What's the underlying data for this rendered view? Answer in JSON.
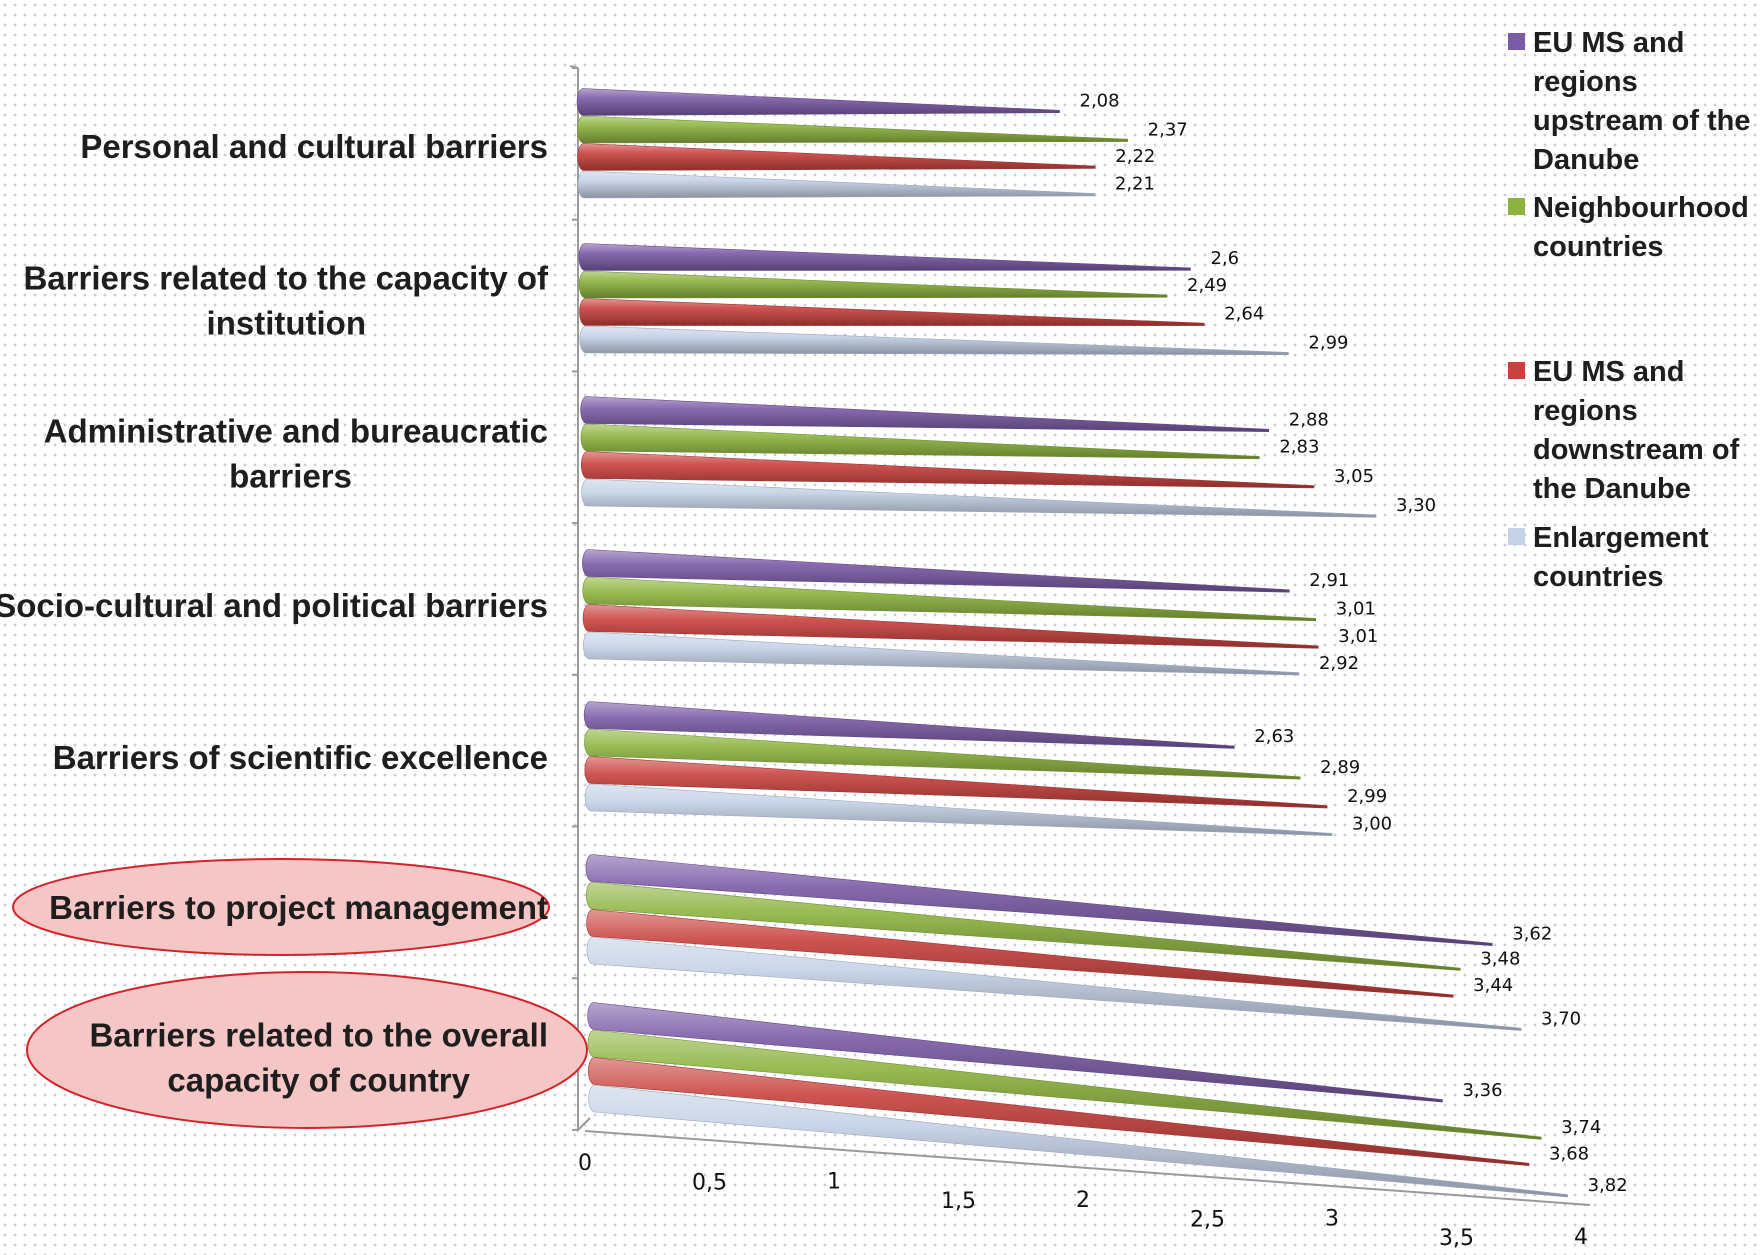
{
  "chart_data": {
    "type": "bar",
    "orientation": "horizontal",
    "categories": [
      "Personal and cultural barriers",
      "Barriers related to the capacity of institution",
      "Administrative and bureaucratic barriers",
      "Socio-cultural and political barriers",
      "Barriers of scientific excellence",
      "Barriers to project management",
      "Barriers related to the overall capacity of country"
    ],
    "highlighted_categories": [
      "Barriers to project management",
      "Barriers related to the overall capacity of country"
    ],
    "series": [
      {
        "name": "EU MS and regions upstream of the Danube",
        "color": "#7b5ba6",
        "values": [
          2.08,
          2.6,
          2.88,
          2.91,
          2.63,
          3.62,
          3.36
        ],
        "labels": [
          "2,08",
          "2,6",
          "2,88",
          "2,91",
          "2,63",
          "3,62",
          "3,36"
        ]
      },
      {
        "name": "Neighbourhood countries",
        "color": "#8db33f",
        "values": [
          2.37,
          2.49,
          2.83,
          3.01,
          2.89,
          3.48,
          3.74
        ],
        "labels": [
          "2,37",
          "2,49",
          "2,83",
          "3,01",
          "2,89",
          "3,48",
          "3,74"
        ]
      },
      {
        "name": "EU MS and regions downstream of the Danube",
        "color": "#c8413e",
        "values": [
          2.22,
          2.64,
          3.05,
          3.01,
          2.99,
          3.44,
          3.68
        ],
        "labels": [
          "2,22",
          "2,64",
          "3,05",
          "3,01",
          "2,99",
          "3,44",
          "3,68"
        ]
      },
      {
        "name": "Enlargement countries",
        "color": "#c4d1e6",
        "values": [
          2.21,
          2.99,
          3.3,
          2.92,
          3.0,
          3.7,
          3.82
        ],
        "labels": [
          "2,21",
          "2,99",
          "3,30",
          "2,92",
          "3,00",
          "3,70",
          "3,82"
        ]
      }
    ],
    "x_ticks": [
      "0",
      "0,5",
      "1",
      "1,5",
      "2",
      "2,5",
      "3",
      "3,5",
      "4"
    ],
    "xlim": [
      0,
      4
    ],
    "legend_position": "right",
    "grid": false
  }
}
